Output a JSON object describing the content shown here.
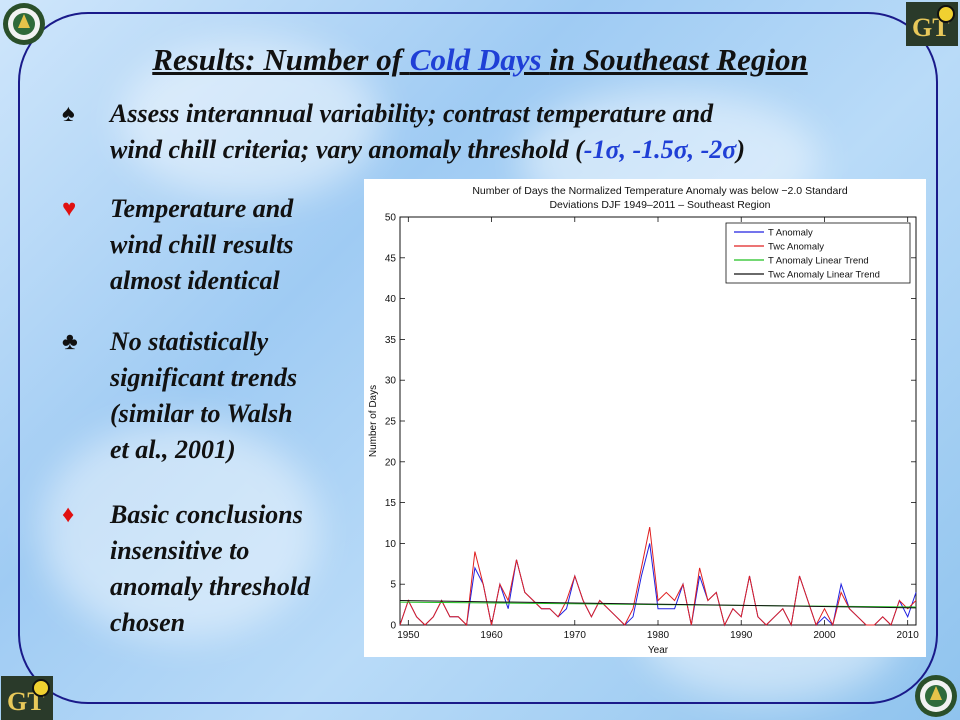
{
  "slide": {
    "title_prefix": "Results:  Number of ",
    "title_highlight": "Cold Days ",
    "title_suffix": "in Southeast Region"
  },
  "bullets": [
    {
      "symbol": "♠",
      "symbol_color": "#111111",
      "line1": "Assess interannual variability; contrast temperature and",
      "line2_prefix": "wind chill criteria; vary anomaly threshold (",
      "line2_values": "-1σ, -1.5σ, -2σ",
      "line2_suffix": ")"
    },
    {
      "symbol": "♥",
      "symbol_color": "#e01010",
      "lines": [
        "Temperature and",
        "wind chill results",
        "almost identical"
      ]
    },
    {
      "symbol": "♣",
      "symbol_color": "#111111",
      "lines": [
        "No statistically",
        "significant trends",
        "(similar to Walsh",
        "et al., 2001)"
      ]
    },
    {
      "symbol": "♦",
      "symbol_color": "#e01010",
      "lines": [
        "Basic conclusions",
        "insensitive to",
        "anomaly threshold",
        "chosen"
      ]
    }
  ],
  "logos": [
    "doe-seal-icon",
    "georgia-tech-logo-icon"
  ],
  "chart_data": {
    "type": "line",
    "title": "Number of Days the Normalized Temperature Anomaly was below −2.0 Standard",
    "subtitle": "Deviations DJF 1949–2011 – Southeast Region",
    "xlabel": "Year",
    "ylabel": "Number of Days",
    "xlim": [
      1949,
      2011
    ],
    "ylim": [
      0,
      50
    ],
    "x_ticks": [
      1950,
      1960,
      1970,
      1980,
      1990,
      2000,
      2010
    ],
    "y_ticks": [
      0,
      5,
      10,
      15,
      20,
      25,
      30,
      35,
      40,
      45,
      50
    ],
    "grid": false,
    "legend_position": "top-right",
    "x": [
      1949,
      1950,
      1951,
      1952,
      1953,
      1954,
      1955,
      1956,
      1957,
      1958,
      1959,
      1960,
      1961,
      1962,
      1963,
      1964,
      1965,
      1966,
      1967,
      1968,
      1969,
      1970,
      1971,
      1972,
      1973,
      1974,
      1975,
      1976,
      1977,
      1978,
      1979,
      1980,
      1981,
      1982,
      1983,
      1984,
      1985,
      1986,
      1987,
      1988,
      1989,
      1990,
      1991,
      1992,
      1993,
      1994,
      1995,
      1996,
      1997,
      1998,
      1999,
      2000,
      2001,
      2002,
      2003,
      2004,
      2005,
      2006,
      2007,
      2008,
      2009,
      2010,
      2011
    ],
    "series": [
      {
        "name": "T Anomaly",
        "color": "#2020e0",
        "values": [
          0,
          3,
          1,
          0,
          1,
          3,
          1,
          1,
          0,
          7,
          5,
          0,
          5,
          2,
          8,
          4,
          3,
          2,
          2,
          1,
          2,
          6,
          3,
          1,
          3,
          2,
          1,
          0,
          1,
          6,
          10,
          2,
          2,
          2,
          5,
          0,
          6,
          3,
          4,
          0,
          2,
          1,
          6,
          1,
          0,
          1,
          2,
          0,
          6,
          3,
          0,
          1,
          0,
          5,
          2,
          1,
          0,
          0,
          1,
          0,
          3,
          1,
          4
        ]
      },
      {
        "name": "Twc Anomaly",
        "color": "#e02020",
        "values": [
          0,
          3,
          1,
          0,
          1,
          3,
          1,
          1,
          0,
          9,
          5,
          0,
          5,
          3,
          8,
          4,
          3,
          2,
          2,
          1,
          3,
          6,
          3,
          1,
          3,
          2,
          1,
          0,
          2,
          7,
          12,
          3,
          4,
          3,
          5,
          0,
          7,
          3,
          4,
          0,
          2,
          1,
          6,
          1,
          0,
          1,
          2,
          0,
          6,
          3,
          0,
          2,
          0,
          4,
          2,
          1,
          0,
          0,
          1,
          0,
          3,
          2,
          3
        ]
      },
      {
        "name": "T Anomaly Linear Trend",
        "color": "#20c020",
        "values_from_trend": [
          2.8,
          2.2
        ]
      },
      {
        "name": "Twc Anomaly Linear Trend",
        "color": "#111111",
        "values_from_trend": [
          3.0,
          2.1
        ]
      }
    ]
  }
}
